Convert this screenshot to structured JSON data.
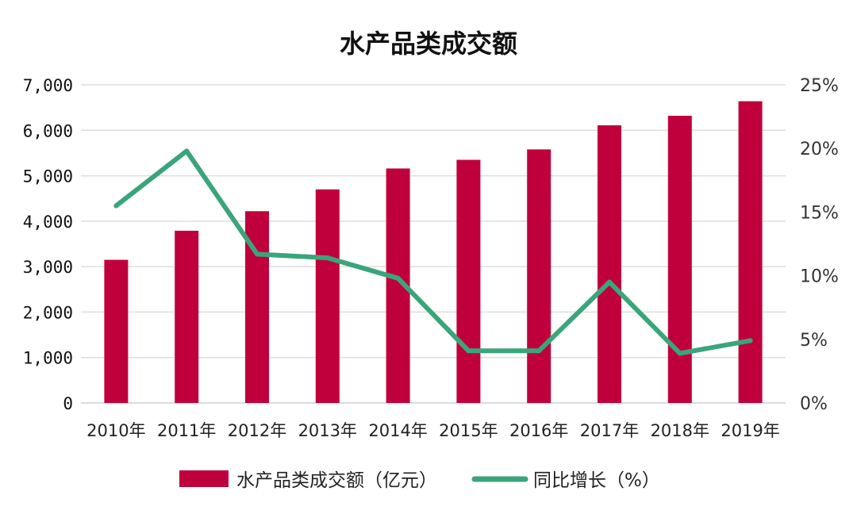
{
  "chart_data": {
    "type": "bar",
    "title": "水产品类成交额",
    "categories": [
      "2010年",
      "2011年",
      "2012年",
      "2013年",
      "2014年",
      "2015年",
      "2016年",
      "2017年",
      "2018年",
      "2019年"
    ],
    "series": [
      {
        "name": "水产品类成交额（亿元）",
        "type": "bar",
        "axis": "left",
        "color": "#c0003c",
        "values": [
          3150,
          3790,
          4220,
          4700,
          5160,
          5350,
          5580,
          6110,
          6320,
          6640
        ]
      },
      {
        "name": "同比增长（%）",
        "type": "line",
        "axis": "right",
        "color": "#3aa57a",
        "values": [
          15.5,
          19.8,
          11.7,
          11.4,
          9.8,
          4.1,
          4.1,
          9.5,
          3.9,
          4.9
        ]
      }
    ],
    "y_left": {
      "range": [
        0,
        7000
      ],
      "ticks": [
        0,
        1000,
        2000,
        3000,
        4000,
        5000,
        6000,
        7000
      ],
      "tick_labels": [
        "0",
        "1,000",
        "2,000",
        "3,000",
        "4,000",
        "5,000",
        "6,000",
        "7,000"
      ]
    },
    "y_right": {
      "range": [
        0,
        25
      ],
      "ticks": [
        0,
        5,
        10,
        15,
        20,
        25
      ],
      "tick_labels": [
        "0%",
        "5%",
        "10%",
        "15%",
        "20%",
        "25%"
      ]
    },
    "xlabel": "",
    "ylabel": "",
    "grid": true,
    "legend_position": "bottom"
  }
}
